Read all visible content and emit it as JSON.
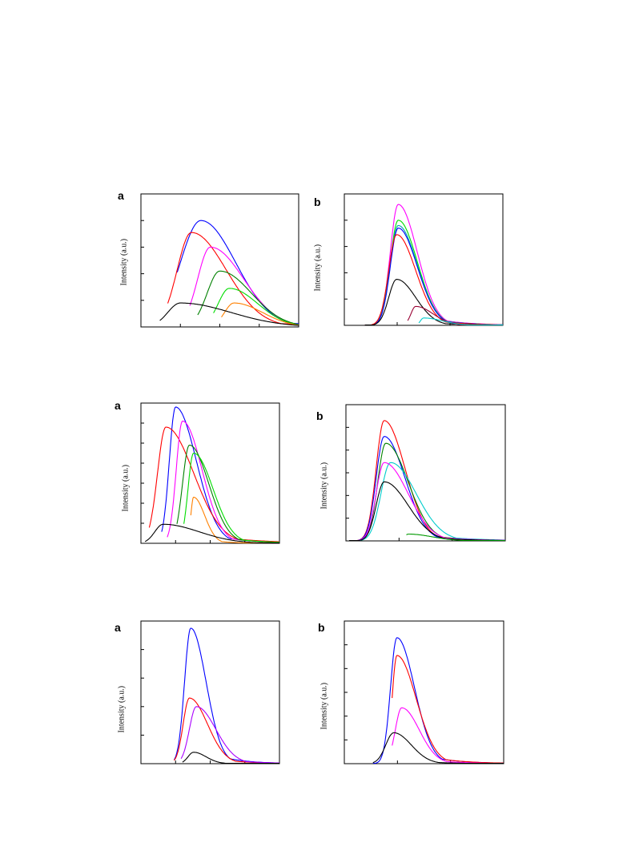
{
  "figure": {
    "y_axis_label": "Intensity (a.u.)"
  },
  "chart_data": [
    {
      "panel": "a",
      "type": "line",
      "ylabel": "Intensity (a.u.)",
      "xlim": [
        0,
        10
      ],
      "ylim": [
        0,
        5
      ],
      "x_ticks": 4,
      "y_ticks": 5,
      "series": [
        {
          "color": "#0000ff",
          "start": 2.3,
          "peak_x": 3.8,
          "peak_y": 4.0,
          "ws": 1.3,
          "wd": 2.2
        },
        {
          "color": "#ff0000",
          "start": 1.7,
          "peak_x": 3.2,
          "peak_y": 3.55,
          "ws": 0.9,
          "wd": 2.2
        },
        {
          "color": "#ff00ff",
          "start": 3.1,
          "peak_x": 4.4,
          "peak_y": 3.0,
          "ws": 0.8,
          "wd": 2.1
        },
        {
          "color": "#008000",
          "start": 3.6,
          "peak_x": 5.0,
          "peak_y": 2.1,
          "ws": 0.8,
          "wd": 2.0
        },
        {
          "color": "#00dd00",
          "start": 4.6,
          "peak_x": 5.6,
          "peak_y": 1.45,
          "ws": 0.7,
          "wd": 1.8
        },
        {
          "color": "#ff8000",
          "start": 5.1,
          "peak_x": 5.9,
          "peak_y": 0.9,
          "ws": 0.6,
          "wd": 1.8
        },
        {
          "color": "#000000",
          "start": 1.2,
          "peak_x": 2.5,
          "peak_y": 0.9,
          "ws": 0.8,
          "wd": 3.2
        }
      ]
    },
    {
      "panel": "b",
      "type": "line",
      "ylabel": "Intensity (a.u.)",
      "xlim": [
        0,
        10
      ],
      "ylim": [
        0,
        5
      ],
      "x_ticks": 3,
      "y_ticks": 5,
      "series": [
        {
          "color": "#ff00ff",
          "start": 1.3,
          "peak_x": 3.4,
          "peak_y": 4.6,
          "ws": 0.5,
          "wd": 1.2
        },
        {
          "color": "#00dd00",
          "start": 1.3,
          "peak_x": 3.4,
          "peak_y": 4.0,
          "ws": 0.5,
          "wd": 1.2
        },
        {
          "color": "#00aaaa",
          "start": 1.3,
          "peak_x": 3.4,
          "peak_y": 3.8,
          "ws": 0.5,
          "wd": 1.2
        },
        {
          "color": "#0000ff",
          "start": 1.3,
          "peak_x": 3.4,
          "peak_y": 3.7,
          "ws": 0.5,
          "wd": 1.2
        },
        {
          "color": "#ff0000",
          "start": 1.3,
          "peak_x": 3.3,
          "peak_y": 3.45,
          "ws": 0.5,
          "wd": 1.2
        },
        {
          "color": "#000000",
          "start": 1.3,
          "peak_x": 3.3,
          "peak_y": 1.75,
          "ws": 0.5,
          "wd": 1.2
        },
        {
          "color": "#990033",
          "start": 4.0,
          "peak_x": 4.5,
          "peak_y": 0.72,
          "ws": 0.3,
          "wd": 1.1
        },
        {
          "color": "#00cccc",
          "start": 4.7,
          "peak_x": 5.0,
          "peak_y": 0.28,
          "ws": 0.2,
          "wd": 1.2
        }
      ]
    },
    {
      "panel": "a",
      "type": "line",
      "ylabel": "Intensity (a.u.)",
      "xlim": [
        0,
        10
      ],
      "ylim": [
        0,
        7
      ],
      "x_ticks": 4,
      "y_ticks": 7,
      "series": [
        {
          "color": "#0000ff",
          "start": 1.5,
          "peak_x": 2.5,
          "peak_y": 6.8,
          "ws": 0.45,
          "wd": 1.5
        },
        {
          "color": "#ff0000",
          "start": 0.6,
          "peak_x": 1.8,
          "peak_y": 5.8,
          "ws": 0.6,
          "wd": 2.0
        },
        {
          "color": "#ff00ff",
          "start": 1.9,
          "peak_x": 3.0,
          "peak_y": 6.1,
          "ws": 0.45,
          "wd": 1.4
        },
        {
          "color": "#008000",
          "start": 2.6,
          "peak_x": 3.5,
          "peak_y": 4.9,
          "ws": 0.5,
          "wd": 1.4
        },
        {
          "color": "#00dd00",
          "start": 3.1,
          "peak_x": 3.8,
          "peak_y": 4.5,
          "ws": 0.4,
          "wd": 1.4
        },
        {
          "color": "#ff8000",
          "start": 3.6,
          "peak_x": 3.8,
          "peak_y": 2.3,
          "ws": 0.2,
          "wd": 0.8
        },
        {
          "color": "#000000",
          "start": 0.3,
          "peak_x": 1.6,
          "peak_y": 0.95,
          "ws": 0.6,
          "wd": 2.6
        }
      ]
    },
    {
      "panel": "b",
      "type": "line",
      "ylabel": "Intensity (a.u.)",
      "xlim": [
        0,
        10
      ],
      "ylim": [
        0,
        6
      ],
      "x_ticks": 3,
      "y_ticks": 6,
      "series": [
        {
          "color": "#ff0000",
          "start": 0.2,
          "peak_x": 2.4,
          "peak_y": 5.3,
          "ws": 0.5,
          "wd": 1.3
        },
        {
          "color": "#0000ff",
          "start": 0.2,
          "peak_x": 2.4,
          "peak_y": 4.6,
          "ws": 0.5,
          "wd": 1.3
        },
        {
          "color": "#008000",
          "start": 0.2,
          "peak_x": 2.5,
          "peak_y": 4.3,
          "ws": 0.5,
          "wd": 1.4
        },
        {
          "color": "#00cccc",
          "start": 0.2,
          "peak_x": 2.8,
          "peak_y": 3.45,
          "ws": 0.6,
          "wd": 1.6
        },
        {
          "color": "#ff00ff",
          "start": 0.2,
          "peak_x": 2.4,
          "peak_y": 3.45,
          "ws": 0.5,
          "wd": 1.5
        },
        {
          "color": "#000000",
          "start": 0.2,
          "peak_x": 2.4,
          "peak_y": 2.6,
          "ws": 0.5,
          "wd": 1.5
        },
        {
          "color": "#009900",
          "start": 3.8,
          "peak_x": 3.9,
          "peak_y": 0.3,
          "ws": 0.2,
          "wd": 1.5
        }
      ]
    },
    {
      "panel": "a",
      "type": "line",
      "ylabel": "Intensity (a.u.)",
      "xlim": [
        0,
        10
      ],
      "ylim": [
        0,
        5
      ],
      "x_ticks": 4,
      "y_ticks": 5,
      "series": [
        {
          "color": "#0000ff",
          "start": 2.4,
          "peak_x": 3.6,
          "peak_y": 4.75,
          "ws": 0.45,
          "wd": 1.1
        },
        {
          "color": "#ff0000",
          "start": 2.4,
          "peak_x": 3.5,
          "peak_y": 2.3,
          "ws": 0.45,
          "wd": 1.3
        },
        {
          "color": "#aa00ff",
          "start": 2.9,
          "peak_x": 4.0,
          "peak_y": 2.0,
          "ws": 0.5,
          "wd": 1.4
        },
        {
          "color": "#000000",
          "start": 3.0,
          "peak_x": 3.8,
          "peak_y": 0.4,
          "ws": 0.4,
          "wd": 0.9
        }
      ]
    },
    {
      "panel": "b",
      "type": "line",
      "ylabel": "Intensity (a.u.)",
      "xlim": [
        0,
        10
      ],
      "ylim": [
        0,
        6
      ],
      "x_ticks": 3,
      "y_ticks": 6,
      "series": [
        {
          "color": "#0000ff",
          "start": 1.8,
          "peak_x": 3.3,
          "peak_y": 5.3,
          "ws": 0.4,
          "wd": 1.1
        },
        {
          "color": "#ff0000",
          "start": 3.0,
          "peak_x": 3.3,
          "peak_y": 4.55,
          "ws": 0.3,
          "wd": 1.2
        },
        {
          "color": "#ff00ff",
          "start": 3.0,
          "peak_x": 3.6,
          "peak_y": 2.35,
          "ws": 0.4,
          "wd": 1.1
        },
        {
          "color": "#000000",
          "start": 1.8,
          "peak_x": 3.1,
          "peak_y": 1.3,
          "ws": 0.5,
          "wd": 1.1
        }
      ]
    }
  ]
}
